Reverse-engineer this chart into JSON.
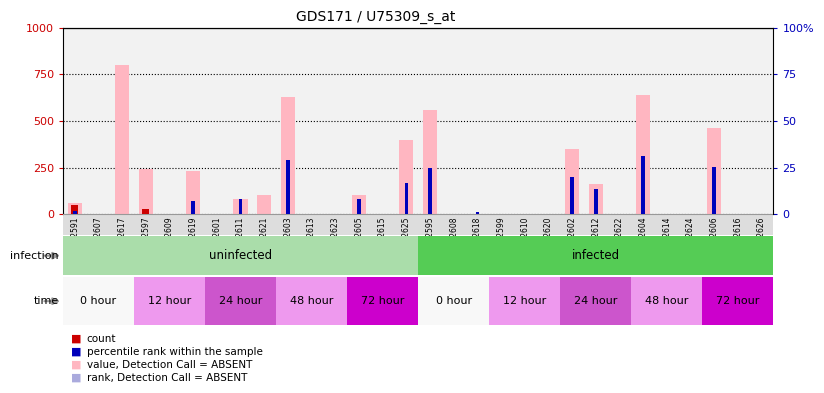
{
  "title": "GDS171 / U75309_s_at",
  "samples": [
    "GSM2591",
    "GSM2607",
    "GSM2617",
    "GSM2597",
    "GSM2609",
    "GSM2619",
    "GSM2601",
    "GSM2611",
    "GSM2621",
    "GSM2603",
    "GSM2613",
    "GSM2623",
    "GSM2605",
    "GSM2615",
    "GSM2625",
    "GSM2595",
    "GSM2608",
    "GSM2618",
    "GSM2599",
    "GSM2610",
    "GSM2620",
    "GSM2602",
    "GSM2612",
    "GSM2622",
    "GSM2604",
    "GSM2614",
    "GSM2624",
    "GSM2606",
    "GSM2616",
    "GSM2626"
  ],
  "count_values": [
    50,
    0,
    0,
    25,
    0,
    0,
    0,
    0,
    0,
    0,
    0,
    0,
    0,
    0,
    0,
    0,
    0,
    0,
    0,
    0,
    0,
    0,
    0,
    0,
    0,
    0,
    0,
    0,
    0,
    0
  ],
  "rank_values": [
    18,
    0,
    0,
    0,
    0,
    70,
    0,
    80,
    0,
    290,
    0,
    0,
    80,
    0,
    165,
    250,
    0,
    10,
    0,
    0,
    0,
    200,
    135,
    0,
    310,
    0,
    0,
    255,
    0,
    0
  ],
  "absent_value_bars": [
    60,
    0,
    800,
    240,
    0,
    230,
    0,
    80,
    100,
    630,
    0,
    0,
    100,
    0,
    400,
    560,
    0,
    0,
    0,
    0,
    0,
    350,
    160,
    0,
    640,
    0,
    0,
    460,
    0,
    0
  ],
  "absent_rank_bars": [
    0,
    0,
    0,
    0,
    0,
    0,
    0,
    0,
    0,
    0,
    0,
    0,
    0,
    0,
    0,
    0,
    0,
    0,
    0,
    0,
    0,
    0,
    0,
    0,
    0,
    0,
    0,
    0,
    0,
    0
  ],
  "ylim_left": [
    0,
    1000
  ],
  "ylim_right": [
    0,
    100
  ],
  "yticks_left": [
    0,
    250,
    500,
    750,
    1000
  ],
  "yticks_right": [
    0,
    25,
    50,
    75,
    100
  ],
  "left_axis_color": "#CC0000",
  "right_axis_color": "#0000BB",
  "absent_bar_color": "#FFB6C1",
  "absent_rank_color": "#AAAADD",
  "count_color": "#CC0000",
  "rank_color": "#0000BB",
  "bg_color": "#F2F2F2",
  "infection_groups": [
    {
      "label": "uninfected",
      "start": 0,
      "end": 15,
      "color": "#AADDAA"
    },
    {
      "label": "infected",
      "start": 15,
      "end": 30,
      "color": "#55CC55"
    }
  ],
  "time_groups": [
    {
      "label": "0 hour",
      "start": 0,
      "end": 3,
      "color": "#F8F8F8"
    },
    {
      "label": "12 hour",
      "start": 3,
      "end": 6,
      "color": "#EE99EE"
    },
    {
      "label": "24 hour",
      "start": 6,
      "end": 9,
      "color": "#CC55CC"
    },
    {
      "label": "48 hour",
      "start": 9,
      "end": 12,
      "color": "#EE99EE"
    },
    {
      "label": "72 hour",
      "start": 12,
      "end": 15,
      "color": "#CC00CC"
    },
    {
      "label": "0 hour",
      "start": 15,
      "end": 18,
      "color": "#F8F8F8"
    },
    {
      "label": "12 hour",
      "start": 18,
      "end": 21,
      "color": "#EE99EE"
    },
    {
      "label": "24 hour",
      "start": 21,
      "end": 24,
      "color": "#CC55CC"
    },
    {
      "label": "48 hour",
      "start": 24,
      "end": 27,
      "color": "#EE99EE"
    },
    {
      "label": "72 hour",
      "start": 27,
      "end": 30,
      "color": "#CC00CC"
    }
  ]
}
